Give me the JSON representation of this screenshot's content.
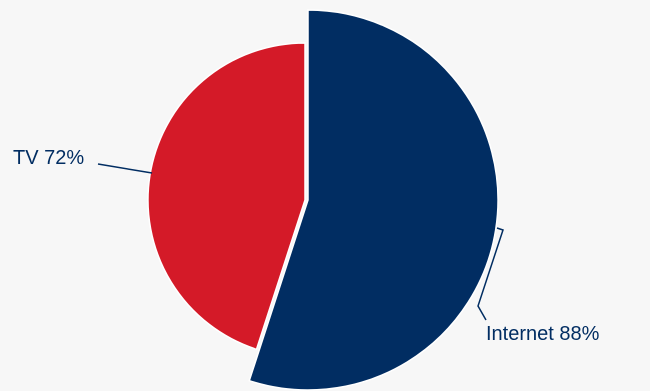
{
  "chart_data": {
    "type": "pie",
    "title": "",
    "slices": [
      {
        "label": "Internet",
        "value": 88,
        "display": "Internet 88%",
        "color": "#012d62"
      },
      {
        "label": "TV",
        "value": 72,
        "display": "TV 72%",
        "color": "#d41a28"
      }
    ],
    "legend": "none",
    "label_color": "#012d62"
  }
}
